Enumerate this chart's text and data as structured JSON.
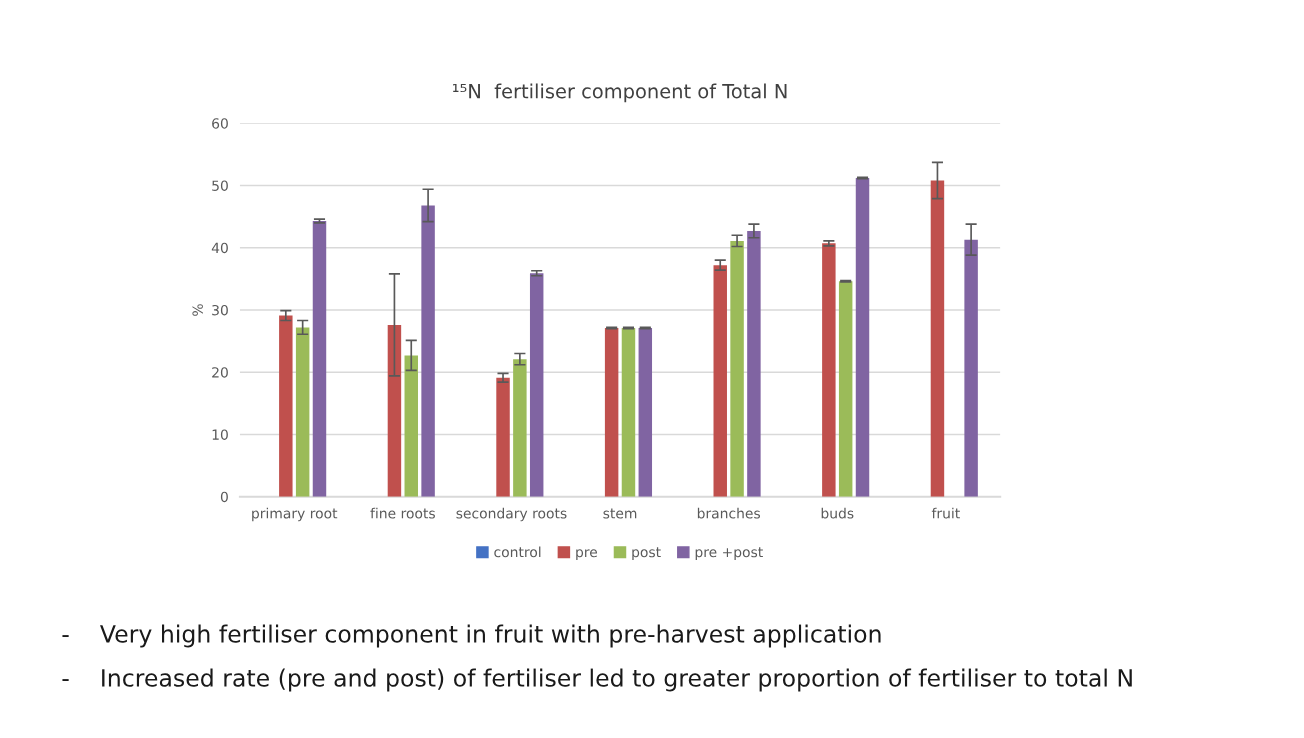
{
  "chart_data": {
    "type": "bar",
    "title": "¹⁵N  fertiliser component of Total N",
    "ylabel": "%",
    "categories": [
      "primary root",
      "fine roots",
      "secondary roots",
      "stem",
      "branches",
      "buds",
      "fruit"
    ],
    "series": [
      {
        "name": "control",
        "color": "#4472c4",
        "values": [
          null,
          null,
          null,
          null,
          null,
          null,
          null
        ]
      },
      {
        "name": "pre",
        "color": "#c0504d",
        "values": [
          29.1,
          27.6,
          19.1,
          27.1,
          37.2,
          40.7,
          50.8
        ],
        "errors": [
          0.8,
          8.2,
          0.7,
          0.1,
          0.8,
          0.4,
          2.9
        ]
      },
      {
        "name": "post",
        "color": "#9bbb59",
        "values": [
          27.2,
          22.7,
          22.1,
          27.1,
          41.1,
          34.6,
          null
        ],
        "errors": [
          1.1,
          2.4,
          0.9,
          0.1,
          0.9,
          0.1,
          null
        ]
      },
      {
        "name": "pre +post",
        "color": "#8064a2",
        "values": [
          44.3,
          46.8,
          35.9,
          27.1,
          42.7,
          51.2,
          41.3
        ],
        "errors": [
          0.3,
          2.6,
          0.4,
          0.1,
          1.1,
          0.1,
          2.5
        ]
      }
    ],
    "ylim": [
      0,
      60
    ],
    "yticks": [
      0,
      10,
      20,
      30,
      40,
      50,
      60
    ],
    "grid": "y",
    "legend": "bottom",
    "annotations": [
      "-    Very high fertiliser component in fruit with pre-harvest application",
      "-    Increased rate (pre and post) of fertiliser led to greater proportion of fertiliser to total N"
    ]
  }
}
